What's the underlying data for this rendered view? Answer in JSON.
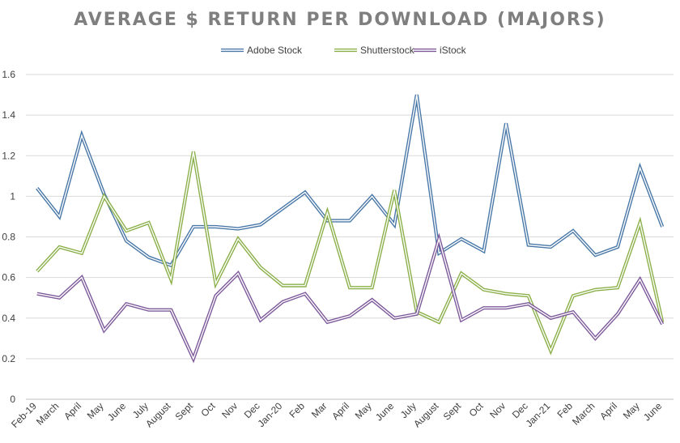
{
  "chart_data": {
    "type": "line",
    "title": "AVERAGE $ RETURN PER DOWNLOAD (MAJORS)",
    "xlabel": "",
    "ylabel": "",
    "ylim": [
      0,
      1.6
    ],
    "yticks": [
      0,
      0.2,
      0.4,
      0.6,
      0.8,
      1,
      1.2,
      1.4,
      1.6
    ],
    "yticklabels": [
      "0",
      "0.2",
      "0.4",
      "0.6",
      "0.8",
      "1",
      "1.2",
      "1.4",
      "1.6"
    ],
    "grid": true,
    "legend": "top-center",
    "categories": [
      "Feb-19",
      "March",
      "April",
      "May",
      "June",
      "July",
      "August",
      "Sept",
      "Oct",
      "Nov",
      "Dec",
      "Jan-20",
      "Feb",
      "Mar",
      "April",
      "May",
      "June",
      "July",
      "August",
      "Sept",
      "Oct",
      "Nov",
      "Dec",
      "Jan-21",
      "Feb",
      "March",
      "April",
      "May",
      "June"
    ],
    "series": [
      {
        "name": "Adobe Stock",
        "color": "#4a78a8",
        "values": [
          1.04,
          0.9,
          1.3,
          1.01,
          0.78,
          0.7,
          0.66,
          0.85,
          0.85,
          0.84,
          0.86,
          0.94,
          1.02,
          0.88,
          0.88,
          1.0,
          0.86,
          1.5,
          0.72,
          0.79,
          0.73,
          1.36,
          0.76,
          0.75,
          0.83,
          0.71,
          0.75,
          1.14,
          0.85
        ]
      },
      {
        "name": "Shutterstock",
        "color": "#8bb04a",
        "values": [
          0.63,
          0.75,
          0.72,
          1.0,
          0.83,
          0.87,
          0.59,
          1.22,
          0.57,
          0.79,
          0.65,
          0.56,
          0.56,
          0.92,
          0.55,
          0.55,
          1.03,
          0.43,
          0.38,
          0.62,
          0.54,
          0.52,
          0.51,
          0.24,
          0.51,
          0.54,
          0.55,
          0.87,
          0.38
        ]
      },
      {
        "name": "iStock",
        "color": "#7e5a9b",
        "values": [
          0.52,
          0.5,
          0.6,
          0.34,
          0.47,
          0.44,
          0.44,
          0.2,
          0.51,
          0.62,
          0.39,
          0.48,
          0.52,
          0.38,
          0.41,
          0.49,
          0.4,
          0.42,
          0.79,
          0.39,
          0.45,
          0.45,
          0.47,
          0.4,
          0.43,
          0.3,
          0.42,
          0.59,
          0.37
        ]
      }
    ]
  }
}
